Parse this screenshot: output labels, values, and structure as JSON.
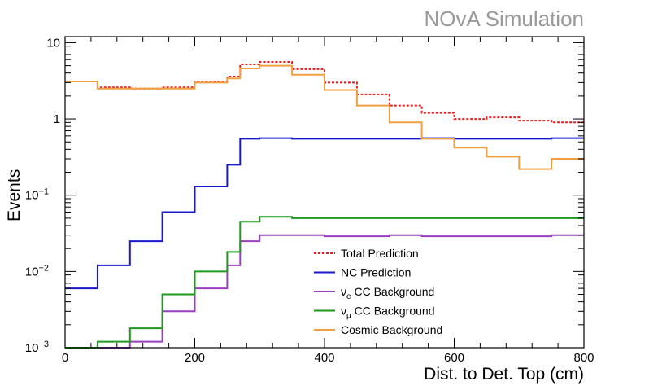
{
  "watermark": "NOvA Simulation",
  "chart_data": {
    "type": "line",
    "style": "step histogram",
    "xlabel": "Dist. to Det. Top (cm)",
    "ylabel": "Events",
    "xlim": [
      0,
      800
    ],
    "ylim": [
      0.001,
      12
    ],
    "yscale": "log",
    "grid": false,
    "legend_position": "bottom-center",
    "x_ticks": [
      "0",
      "200",
      "400",
      "600",
      "800"
    ],
    "y_ticks": [
      {
        "value": 10,
        "base": "10",
        "exp": ""
      },
      {
        "value": 1,
        "base": "1",
        "exp": ""
      },
      {
        "value": 0.1,
        "base": "10",
        "exp": "−1"
      },
      {
        "value": 0.01,
        "base": "10",
        "exp": "−2"
      },
      {
        "value": 0.001,
        "base": "10",
        "exp": "−3"
      }
    ],
    "bin_edges": [
      0,
      50,
      100,
      150,
      200,
      250,
      270,
      300,
      350,
      400,
      450,
      500,
      550,
      600,
      650,
      700,
      750,
      800
    ],
    "series": [
      {
        "name": "Total Prediction",
        "color": "#e81c1c",
        "dashed": true,
        "values": [
          3.1,
          2.6,
          2.5,
          2.6,
          3.1,
          3.6,
          5.2,
          5.6,
          4.5,
          3.0,
          2.1,
          1.5,
          1.2,
          1.0,
          1.05,
          0.95,
          0.9
        ]
      },
      {
        "name": "NC Prediction",
        "color": "#1a1acc",
        "dashed": false,
        "values": [
          0.006,
          0.012,
          0.025,
          0.06,
          0.13,
          0.25,
          0.55,
          0.56,
          0.55,
          0.55,
          0.55,
          0.55,
          0.56,
          0.55,
          0.55,
          0.55,
          0.56
        ]
      },
      {
        "name": "ν_e CC Background",
        "color": "#9a3fc0",
        "dashed": false,
        "values": [
          0.0,
          0.0008,
          0.0012,
          0.003,
          0.006,
          0.012,
          0.025,
          0.03,
          0.03,
          0.029,
          0.029,
          0.03,
          0.029,
          0.029,
          0.029,
          0.029,
          0.03
        ]
      },
      {
        "name": "ν_μ CC Background",
        "color": "#1e9a1e",
        "dashed": false,
        "values": [
          0.0,
          0.0012,
          0.0018,
          0.005,
          0.01,
          0.018,
          0.045,
          0.052,
          0.05,
          0.05,
          0.05,
          0.05,
          0.05,
          0.05,
          0.05,
          0.05,
          0.05
        ]
      },
      {
        "name": "Cosmic Background",
        "color": "#f0a040",
        "dashed": false,
        "values": [
          3.1,
          2.5,
          2.5,
          2.5,
          3.0,
          3.4,
          4.6,
          5.0,
          3.8,
          2.4,
          1.5,
          0.9,
          0.55,
          0.42,
          0.32,
          0.22,
          0.3
        ]
      }
    ]
  }
}
